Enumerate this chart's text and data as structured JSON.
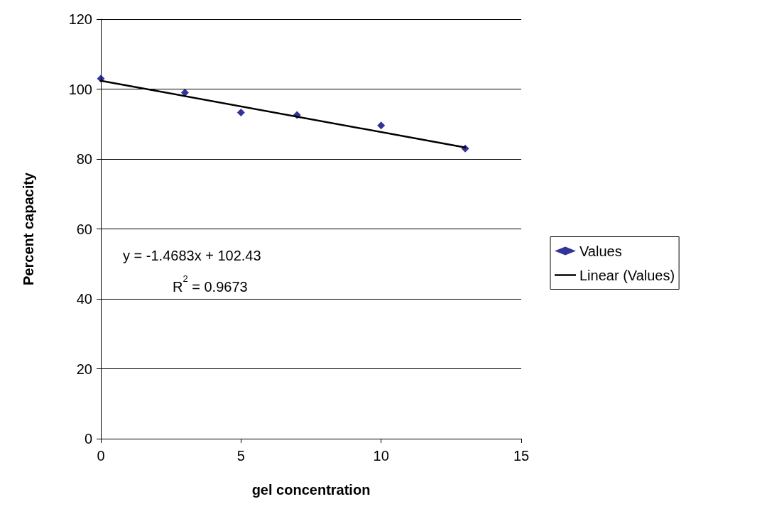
{
  "chart_data": {
    "type": "scatter",
    "xlabel": "gel concentration",
    "ylabel": "Percent capacity",
    "x": [
      0,
      3,
      5,
      7,
      10,
      13
    ],
    "series": [
      {
        "name": "Values",
        "type": "scatter",
        "color": "#000080",
        "marker": "diamond",
        "values": [
          103,
          99,
          93.3,
          92.6,
          89.6,
          83
        ]
      },
      {
        "name": "Linear (Values)",
        "type": "line",
        "color": "#000000",
        "marker": "none",
        "line_style": "solid",
        "x": [
          0,
          13
        ],
        "values": [
          102.4,
          83.3
        ]
      }
    ],
    "xlim": [
      0,
      15
    ],
    "xticks": [
      0,
      5,
      10,
      15
    ],
    "ylim": [
      0,
      120
    ],
    "yticks": [
      0,
      20,
      40,
      60,
      80,
      100,
      120
    ],
    "grid": "y",
    "legend": "right",
    "annotations": [
      "y = -1.4683x + 102.43",
      "R$^{2}$ = 0.9673"
    ]
  }
}
